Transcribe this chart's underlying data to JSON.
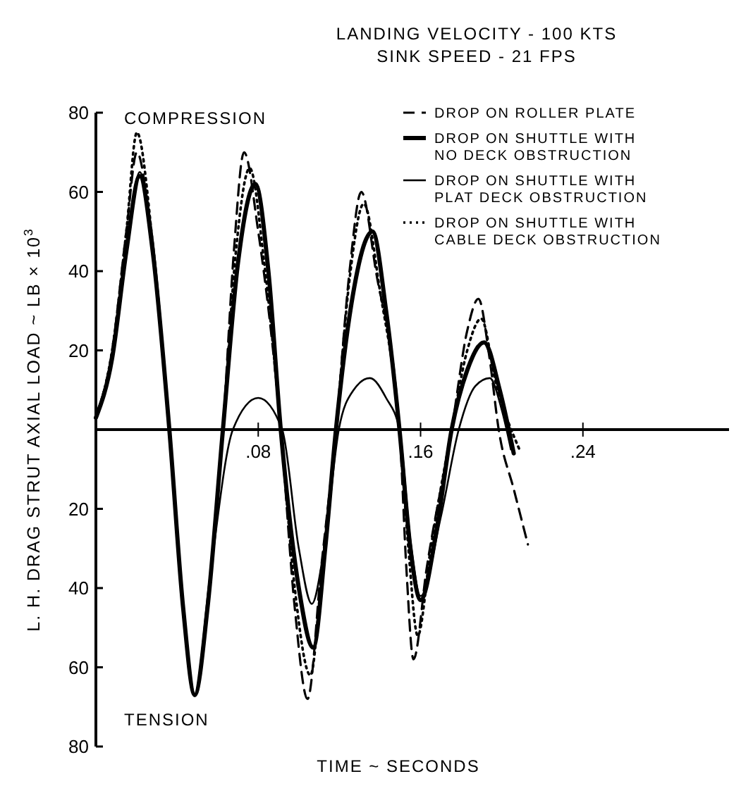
{
  "chart_data": {
    "type": "line",
    "title": "LANDING VELOCITY - 100 KTS",
    "subtitle": "SINK SPEED - 21 FPS",
    "xlabel": "TIME ~ SECONDS",
    "ylabel": "L. H. DRAG STRUT AXIAL LOAD ~ LB × 10$^{3}$",
    "annotations": [
      "COMPRESSION",
      "TENSION"
    ],
    "xlim": [
      0,
      0.312
    ],
    "xticks": [
      {
        "value": 0.08,
        "label": ".08"
      },
      {
        "value": 0.16,
        "label": ".16"
      },
      {
        "value": 0.24,
        "label": ".24"
      }
    ],
    "ylim": [
      -80,
      80
    ],
    "yticks": [
      80,
      60,
      40,
      20,
      {
        "value": -20,
        "label": "20"
      },
      {
        "value": -40,
        "label": "40"
      },
      {
        "value": -60,
        "label": "60"
      },
      {
        "value": -80,
        "label": "80"
      }
    ],
    "grid": false,
    "legend": "top right",
    "series": [
      {
        "name": "DROP ON ROLLER PLATE",
        "color": "#000000",
        "line_style": "dashed",
        "x": [
          0,
          0.008,
          0.015,
          0.0202,
          0.028,
          0.0362,
          0.043,
          0.0487,
          0.055,
          0.0626,
          0.068,
          0.073,
          0.08,
          0.0911,
          0.098,
          0.1043,
          0.111,
          0.1183,
          0.125,
          0.1308,
          0.138,
          0.1496,
          0.153,
          0.1565,
          0.163,
          0.1753,
          0.183,
          0.1885,
          0.194,
          0.1985,
          0.2059,
          0.2129
        ],
        "values": [
          3,
          20,
          50,
          70,
          45,
          0,
          -45,
          -67,
          -45,
          0,
          45,
          70,
          50,
          0,
          -45,
          -68,
          -35,
          0,
          40,
          60,
          40,
          0,
          -35,
          -58,
          -35,
          0,
          25,
          33,
          18,
          0,
          -15,
          -29
        ]
      },
      {
        "name": "DROP ON SHUTTLE WITH NO DECK OBSTRUCTION",
        "color": "#000000",
        "line_style": "solid",
        "x": [
          0,
          0.008,
          0.015,
          0.0216,
          0.028,
          0.0362,
          0.043,
          0.0487,
          0.055,
          0.0626,
          0.07,
          0.0786,
          0.085,
          0.0911,
          0.1,
          0.1071,
          0.113,
          0.1183,
          0.126,
          0.1363,
          0.143,
          0.1496,
          0.155,
          0.16,
          0.168,
          0.1753,
          0.183,
          0.1913,
          0.199,
          0.2059
        ],
        "values": [
          3,
          18,
          45,
          64,
          45,
          0,
          -45,
          -67,
          -45,
          0,
          42,
          62,
          40,
          0,
          -40,
          -55,
          -30,
          0,
          32,
          50,
          30,
          0,
          -30,
          -43,
          -25,
          0,
          15,
          22,
          10,
          -6
        ]
      },
      {
        "name": "DROP ON SHUTTLE WITH PLAT DECK OBSTRUCTION",
        "color": "#000000",
        "line_style": "solid",
        "x": [
          0,
          0.008,
          0.015,
          0.0216,
          0.028,
          0.0362,
          0.043,
          0.0487,
          0.056,
          0.0675,
          0.08,
          0.0918,
          0.1,
          0.1064,
          0.113,
          0.1197,
          0.127,
          0.135,
          0.143,
          0.1496,
          0.155,
          0.16,
          0.17,
          0.1788,
          0.187,
          0.1941,
          0.2,
          0.2045
        ],
        "values": [
          3,
          18,
          45,
          65,
          48,
          0,
          -45,
          -67,
          -38,
          0,
          8,
          0,
          -30,
          -44,
          -28,
          0,
          10,
          13,
          8,
          0,
          -28,
          -42,
          -22,
          0,
          11,
          13,
          5,
          -5
        ]
      },
      {
        "name": "DROP ON SHUTTLE WITH CABLE DECK OBSTRUCTION",
        "color": "#000000",
        "line_style": "dotted",
        "x": [
          0,
          0.008,
          0.015,
          0.0202,
          0.028,
          0.0362,
          0.043,
          0.0487,
          0.055,
          0.0626,
          0.069,
          0.0758,
          0.083,
          0.0911,
          0.098,
          0.1057,
          0.112,
          0.1183,
          0.125,
          0.132,
          0.14,
          0.1496,
          0.154,
          0.1586,
          0.165,
          0.1753,
          0.183,
          0.1899,
          0.197,
          0.2087
        ],
        "values": [
          3,
          20,
          50,
          75,
          47,
          0,
          -45,
          -67,
          -45,
          0,
          45,
          66,
          42,
          0,
          -40,
          -62,
          -32,
          0,
          38,
          57,
          35,
          0,
          -30,
          -52,
          -30,
          0,
          20,
          28,
          12,
          -5
        ]
      }
    ]
  }
}
